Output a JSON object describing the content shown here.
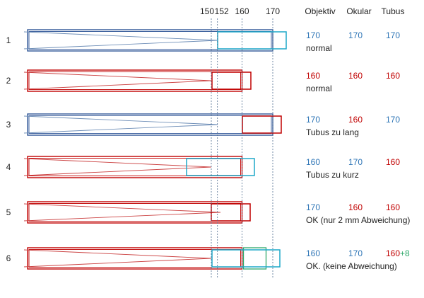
{
  "scale": {
    "ticks": [
      "150",
      "152",
      "160",
      "170"
    ],
    "values": [
      150,
      152,
      160,
      170
    ]
  },
  "columns": {
    "objektiv": "Objektiv",
    "okular": "Okular",
    "tubus": "Tubus"
  },
  "colors": {
    "blue_outline": "#2f5597",
    "red_outline": "#c00000",
    "cyan_box": "#1fa8c9",
    "green_box": "#2ea86a",
    "blue_text": "#2e75b6",
    "red_text": "#c00000",
    "green_text": "#2ea86a",
    "dashed_line": "#4f6d8f",
    "tie_line_blue": "#6f8fb8",
    "tie_line_red": "#c44"
  },
  "rows": [
    {
      "number": "1",
      "objektiv": "170",
      "objektiv_color": "blue",
      "okular": "170",
      "okular_color": "blue",
      "tubus": "170",
      "tubus_color": "blue",
      "tubus_extra": "",
      "note": "normal",
      "tube_mm": 170,
      "eyepiece_mm": 170,
      "apex_mm": 170,
      "tube_color": "blue",
      "eyepiece_color": "cyan",
      "green_tube_mm": null
    },
    {
      "number": "2",
      "objektiv": "160",
      "objektiv_color": "red",
      "okular": "160",
      "okular_color": "red",
      "tubus": "160",
      "tubus_color": "red",
      "tubus_extra": "",
      "note": "normal",
      "tube_mm": 160,
      "eyepiece_mm": 160,
      "apex_mm": 160,
      "tube_color": "red",
      "eyepiece_color": "red",
      "green_tube_mm": null
    },
    {
      "number": "3",
      "objektiv": "170",
      "objektiv_color": "blue",
      "okular": "160",
      "okular_color": "red",
      "tubus": "170",
      "tubus_color": "blue",
      "tubus_extra": "",
      "note": "Tubus zu lang",
      "tube_mm": 170,
      "eyepiece_mm": 160,
      "apex_mm": 170,
      "tube_color": "blue",
      "eyepiece_color": "red",
      "green_tube_mm": null
    },
    {
      "number": "4",
      "objektiv": "160",
      "objektiv_color": "blue",
      "okular": "170",
      "okular_color": "blue",
      "tubus": "160",
      "tubus_color": "red",
      "tubus_extra": "",
      "note": "Tubus zu kurz",
      "tube_mm": 160,
      "eyepiece_mm": 170,
      "apex_mm": 160,
      "tube_color": "red",
      "eyepiece_color": "cyan",
      "green_tube_mm": null
    },
    {
      "number": "5",
      "objektiv": "170",
      "objektiv_color": "blue",
      "okular": "160",
      "okular_color": "red",
      "tubus": "160",
      "tubus_color": "red",
      "tubus_extra": "",
      "note": "OK (nur 2 mm Abweichung)",
      "tube_mm": 160,
      "eyepiece_mm": 160,
      "apex_mm": 170,
      "tube_color": "red",
      "eyepiece_color": "red",
      "green_tube_mm": null
    },
    {
      "number": "6",
      "objektiv": "160",
      "objektiv_color": "blue",
      "okular": "170",
      "okular_color": "blue",
      "tubus": "160",
      "tubus_color": "red",
      "tubus_extra": "+8",
      "note": "OK. (keine Abweichung)",
      "tube_mm": 160,
      "eyepiece_mm": 170,
      "apex_mm": 160,
      "tube_color": "red",
      "eyepiece_color": "cyan",
      "green_tube_mm": 168
    }
  ]
}
